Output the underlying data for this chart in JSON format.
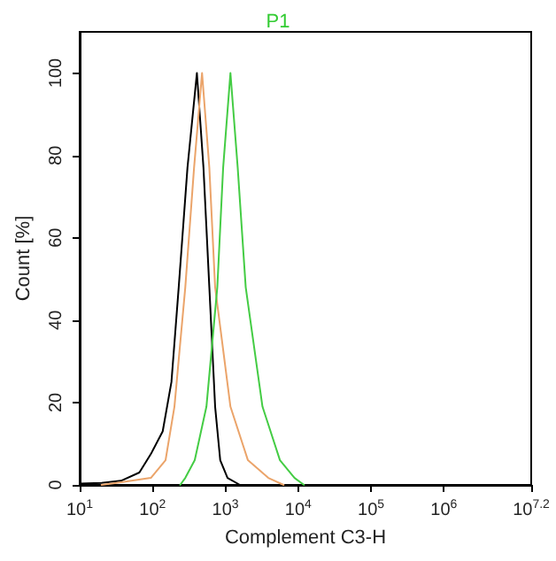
{
  "chart_data": {
    "type": "line",
    "title": "P1",
    "xlabel": "Complement C3-H",
    "ylabel": "Count [%]",
    "log": "x",
    "xlim": [
      10,
      15848932
    ],
    "xticks": [
      {
        "value": 10,
        "label": "10$^{1}$"
      },
      {
        "value": 100,
        "label": "10$^{2}$"
      },
      {
        "value": 1000,
        "label": "10$^{3}$"
      },
      {
        "value": 10000,
        "label": "10$^{4}$"
      },
      {
        "value": 100000,
        "label": "10$^{5}$"
      },
      {
        "value": 1000000,
        "label": "10$^{6}$"
      },
      {
        "value": 15848932,
        "label": "10$^{7.2}$"
      }
    ],
    "ylim": [
      0,
      110
    ],
    "yticks": [
      0,
      20,
      40,
      60,
      80,
      100
    ],
    "grid": false,
    "marker": "none",
    "line_style": "solid",
    "series": [
      {
        "color": "#000000",
        "x": [
          10,
          20,
          37,
          66,
          95,
          138,
          182,
          229,
          302,
          407,
          501,
          603,
          724,
          851,
          1072,
          1585
        ],
        "values": [
          0.3,
          0.5,
          1,
          3,
          7.5,
          13,
          25,
          48,
          77,
          100,
          77,
          48,
          19,
          6,
          1.7,
          0
        ]
      },
      {
        "color": "#eba46a",
        "x": [
          20,
          32,
          95,
          151,
          200,
          282,
          372,
          479,
          603,
          724,
          1175,
          2042,
          3890,
          6310
        ],
        "values": [
          0,
          0.5,
          1.7,
          6,
          19,
          48,
          77,
          100,
          77,
          48,
          19,
          6,
          1.7,
          0
        ]
      },
      {
        "color": "#44cc44",
        "x": [
          240,
          282,
          380,
          550,
          776,
          933,
          1175,
          1479,
          1905,
          3236,
          5623,
          8913,
          12023
        ],
        "values": [
          0,
          1.7,
          6,
          19,
          48,
          77,
          100,
          77,
          48,
          19,
          6,
          1.7,
          0
        ]
      }
    ]
  }
}
